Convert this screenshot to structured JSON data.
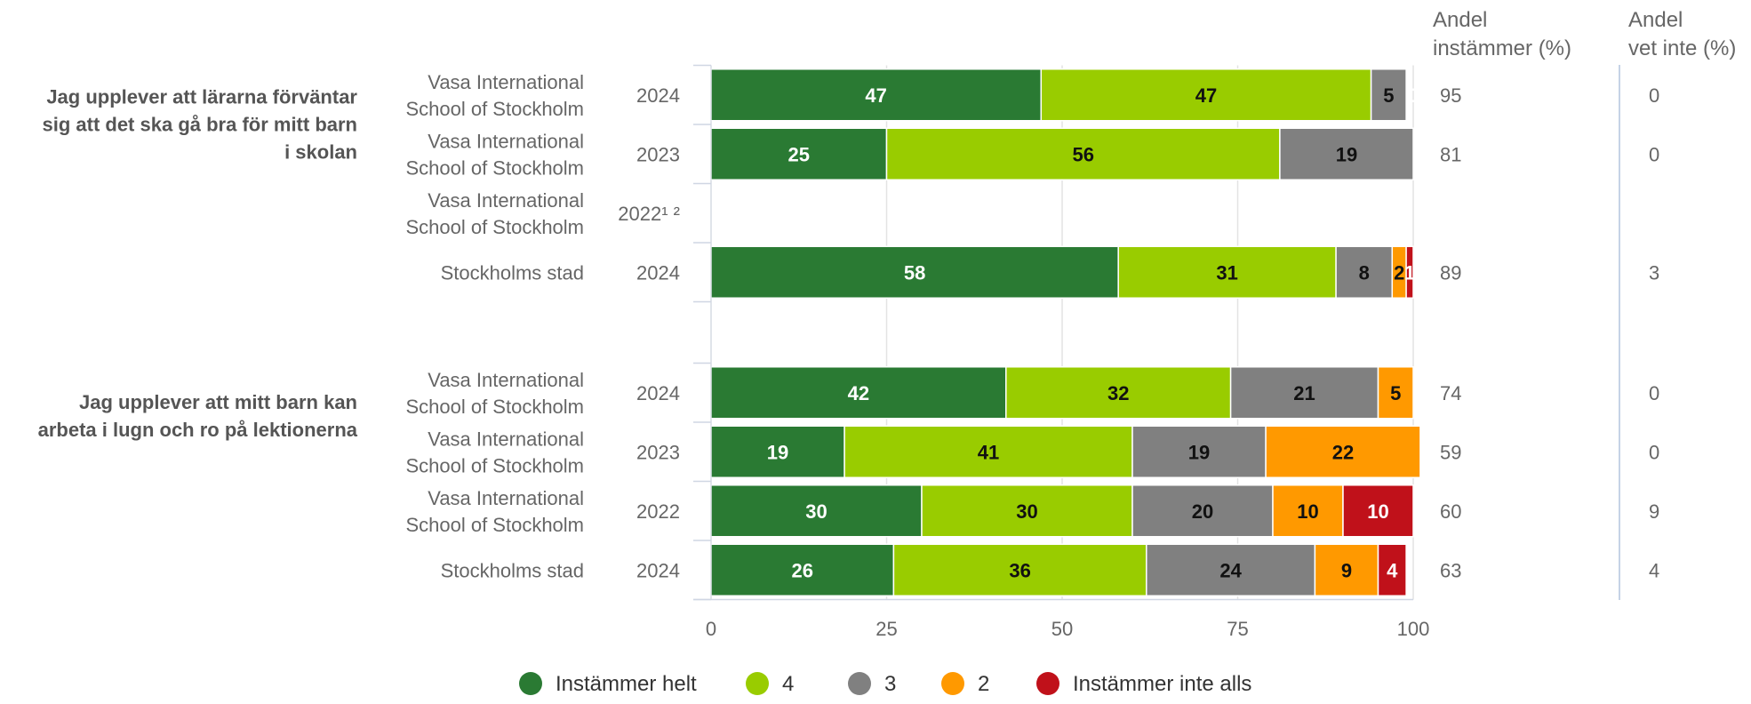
{
  "chart_data": {
    "type": "bar",
    "orientation": "horizontal",
    "stacked": true,
    "xlim": [
      0,
      100
    ],
    "x_ticks": [
      0,
      25,
      50,
      75,
      100
    ],
    "grid": true,
    "legend_position": "bottom",
    "column_headers": {
      "share_agree": [
        "Andel",
        "instämmer (%)"
      ],
      "share_dont_know": [
        "Andel",
        "vet inte (%)"
      ]
    },
    "series": [
      {
        "name": "Instämmer helt",
        "color": "#2a7a33"
      },
      {
        "name": "4",
        "color": "#99cc00"
      },
      {
        "name": "3",
        "color": "#808080"
      },
      {
        "name": "2",
        "color": "#ff9900"
      },
      {
        "name": "Instämmer inte alls",
        "color": "#c0111a"
      }
    ],
    "groups": [
      {
        "question": [
          "Jag upplever att lärarna förväntar",
          "sig att det ska gå bra för mitt barn",
          "i skolan"
        ],
        "rows": [
          {
            "unit": [
              "Vasa International",
              "School of Stockholm"
            ],
            "year": "2024",
            "values": [
              47,
              47,
              5,
              0,
              0
            ],
            "share_agree": "95",
            "share_dont_know": "0"
          },
          {
            "unit": [
              "Vasa International",
              "School of Stockholm"
            ],
            "year": "2023",
            "values": [
              25,
              56,
              19,
              0,
              0
            ],
            "share_agree": "81",
            "share_dont_know": "0"
          },
          {
            "unit": [
              "Vasa International",
              "School of Stockholm"
            ],
            "year": "2022¹ ²",
            "values": null,
            "share_agree": "",
            "share_dont_know": ""
          },
          {
            "unit": [
              "Stockholms stad"
            ],
            "year": "2024",
            "values": [
              58,
              31,
              8,
              2,
              1
            ],
            "share_agree": "89",
            "share_dont_know": "3"
          }
        ]
      },
      {
        "question": [
          "Jag upplever att mitt barn kan",
          "arbeta i lugn och ro på lektionerna"
        ],
        "rows": [
          {
            "unit": [
              "Vasa International",
              "School of Stockholm"
            ],
            "year": "2024",
            "values": [
              42,
              32,
              21,
              5,
              0
            ],
            "share_agree": "74",
            "share_dont_know": "0"
          },
          {
            "unit": [
              "Vasa International",
              "School of Stockholm"
            ],
            "year": "2023",
            "values": [
              19,
              41,
              19,
              22,
              0
            ],
            "share_agree": "59",
            "share_dont_know": "0"
          },
          {
            "unit": [
              "Vasa International",
              "School of Stockholm"
            ],
            "year": "2022",
            "values": [
              30,
              30,
              20,
              10,
              10
            ],
            "share_agree": "60",
            "share_dont_know": "9"
          },
          {
            "unit": [
              "Stockholms stad"
            ],
            "year": "2024",
            "values": [
              26,
              36,
              24,
              9,
              4
            ],
            "share_agree": "63",
            "share_dont_know": "4"
          }
        ]
      }
    ]
  }
}
